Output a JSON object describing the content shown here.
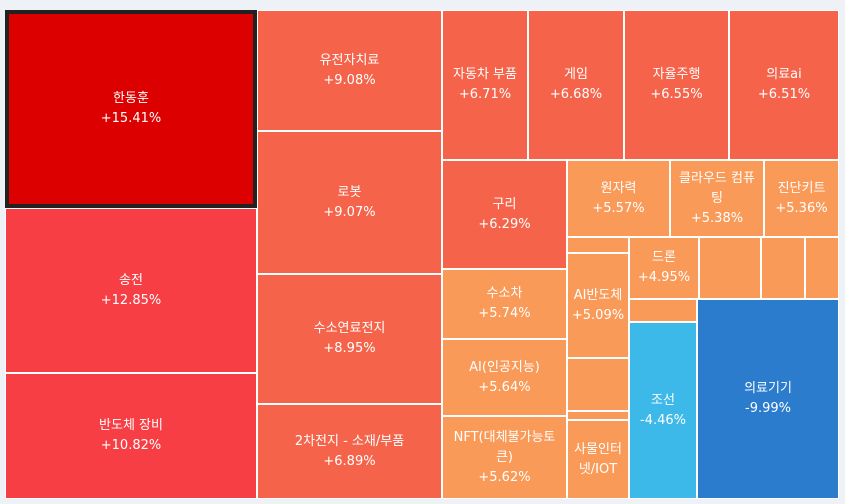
{
  "chart_data": {
    "type": "treemap",
    "selected": "한동훈",
    "colors": {
      "strong_up": "#dd0000",
      "up_high": "#f63e44",
      "up_mid": "#f5644a",
      "up_low": "#f99a58",
      "down_mid": "#3cb9e8",
      "down_high": "#2b7ccc"
    },
    "items": [
      {
        "name": "한동훈",
        "change": "+15.41%",
        "value": 15.41
      },
      {
        "name": "송전",
        "change": "+12.85%",
        "value": 12.85
      },
      {
        "name": "반도체 장비",
        "change": "+10.82%",
        "value": 10.82
      },
      {
        "name": "유전자치료",
        "change": "+9.08%",
        "value": 9.08
      },
      {
        "name": "로봇",
        "change": "+9.07%",
        "value": 9.07
      },
      {
        "name": "수소연료전지",
        "change": "+8.95%",
        "value": 8.95
      },
      {
        "name": "2차전지 - 소재/부품",
        "change": "+6.89%",
        "value": 6.89
      },
      {
        "name": "자동차 부품",
        "change": "+6.71%",
        "value": 6.71
      },
      {
        "name": "게임",
        "change": "+6.68%",
        "value": 6.68
      },
      {
        "name": "자율주행",
        "change": "+6.55%",
        "value": 6.55
      },
      {
        "name": "의료ai",
        "change": "+6.51%",
        "value": 6.51
      },
      {
        "name": "구리",
        "change": "+6.29%",
        "value": 6.29
      },
      {
        "name": "원자력",
        "change": "+5.57%",
        "value": 5.57
      },
      {
        "name": "클라우드 컴퓨팅",
        "change": "+5.38%",
        "value": 5.38
      },
      {
        "name": "진단키트",
        "change": "+5.36%",
        "value": 5.36
      },
      {
        "name": "수소차",
        "change": "+5.74%",
        "value": 5.74
      },
      {
        "name": "AI반도체",
        "change": "+5.09%",
        "value": 5.09
      },
      {
        "name": "드론",
        "change": "+4.95%",
        "value": 4.95
      },
      {
        "name": "AI(인공지능)",
        "change": "+5.64%",
        "value": 5.64
      },
      {
        "name": "NFT(대체불가능토큰)",
        "change": "+5.62%",
        "value": 5.62
      },
      {
        "name": "사물인터넷/IOT",
        "change": "",
        "value": null
      },
      {
        "name": "조선",
        "change": "-4.46%",
        "value": -4.46
      },
      {
        "name": "의료기기",
        "change": "-9.99%",
        "value": -9.99
      },
      {
        "name": "",
        "change": "",
        "value": null
      },
      {
        "name": "",
        "change": "",
        "value": null
      },
      {
        "name": "",
        "change": "",
        "value": null
      },
      {
        "name": "",
        "change": "",
        "value": null
      },
      {
        "name": "",
        "change": "",
        "value": null
      },
      {
        "name": "",
        "change": "",
        "value": null
      },
      {
        "name": "",
        "change": "",
        "value": null
      }
    ]
  }
}
